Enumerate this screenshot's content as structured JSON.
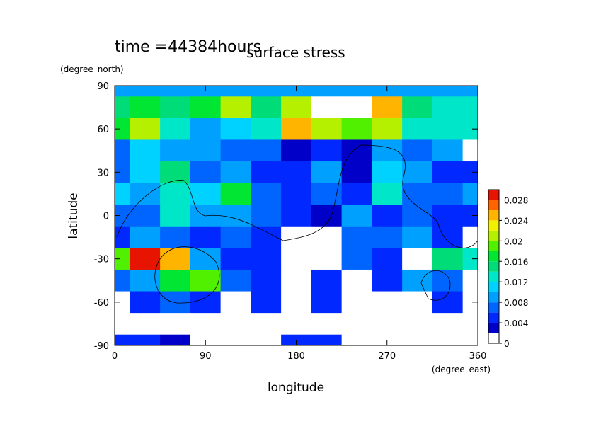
{
  "chart_data": {
    "type": "contour",
    "title": "surface stress",
    "subtitle": "time =44384hours",
    "x_label": "longitude",
    "x_units": "(degree_east)",
    "y_label": "latitude",
    "y_units": "(degree_north)",
    "x": [
      0,
      30,
      60,
      90,
      120,
      150,
      180,
      210,
      240,
      270,
      300,
      330,
      360
    ],
    "y": [
      90,
      75,
      60,
      45,
      30,
      15,
      0,
      -15,
      -30,
      -45,
      -60,
      -75,
      -90
    ],
    "z": [
      [
        0.008,
        0.008,
        0.008,
        0.008,
        0.008,
        0.008,
        0.008,
        0.008,
        0.008,
        0.008,
        0.008,
        0.008,
        0.008
      ],
      [
        0.014,
        0.016,
        0.014,
        0.016,
        0.02,
        0.014,
        0.02,
        0,
        0,
        0.024,
        0.014,
        0.012,
        0.012
      ],
      [
        0.016,
        0.02,
        0.012,
        0.008,
        0.01,
        0.012,
        0.024,
        0.02,
        0.018,
        0.02,
        0.012,
        0.012,
        0.012
      ],
      [
        0.006,
        0.01,
        0.008,
        0.008,
        0.006,
        0.006,
        0.002,
        0.004,
        0.002,
        0.008,
        0.006,
        0.008,
        0
      ],
      [
        0.006,
        0.01,
        0.014,
        0.006,
        0.008,
        0.004,
        0.004,
        0.008,
        0.002,
        0.01,
        0.008,
        0.004,
        0.004
      ],
      [
        0.01,
        0.008,
        0.012,
        0.01,
        0.016,
        0.006,
        0.004,
        0.006,
        0.004,
        0.012,
        0.006,
        0.006,
        0.008
      ],
      [
        0.006,
        0.006,
        0.012,
        0.008,
        0.008,
        0.006,
        0.004,
        0.002,
        0.008,
        0.004,
        0.006,
        0.004,
        0.004
      ],
      [
        0.004,
        0.008,
        0.006,
        0.004,
        0.006,
        0.004,
        0,
        0,
        0.006,
        0.006,
        0.008,
        0.004,
        0
      ],
      [
        0.018,
        0.028,
        0.024,
        0.008,
        0.004,
        0.004,
        0,
        0,
        0.006,
        0.004,
        0,
        0.014,
        0.012
      ],
      [
        0.006,
        0.008,
        0.016,
        0.018,
        0.006,
        0.004,
        0,
        0.004,
        0,
        0.004,
        0.008,
        0.006,
        0
      ],
      [
        0,
        0.004,
        0.006,
        0.004,
        0,
        0.004,
        0,
        0.004,
        0,
        0,
        0,
        0.004,
        0
      ],
      [
        0,
        0,
        0,
        0,
        0,
        0,
        0,
        0,
        0,
        0,
        0,
        0,
        0
      ],
      [
        0.004,
        0.004,
        0.002,
        0,
        0,
        0,
        0.004,
        0.004,
        0,
        0,
        0,
        0,
        0
      ]
    ],
    "xlim": [
      0,
      360
    ],
    "xticks": [
      0,
      90,
      180,
      270,
      360
    ],
    "ylim": [
      -90,
      90
    ],
    "yticks": [
      -90,
      -60,
      -30,
      0,
      30,
      60,
      90
    ],
    "levels": [
      0,
      0.002,
      0.004,
      0.006,
      0.008,
      0.01,
      0.012,
      0.014,
      0.016,
      0.018,
      0.02,
      0.022,
      0.024,
      0.026,
      0.028
    ],
    "colors": [
      "#ffffff",
      "#0000c8",
      "#0028ff",
      "#0064ff",
      "#00a0ff",
      "#00d2ff",
      "#00e6c8",
      "#00dc78",
      "#00e632",
      "#50f000",
      "#b4f000",
      "#f0f000",
      "#ffb400",
      "#ff6400",
      "#e61400"
    ],
    "clim": [
      0,
      0.03
    ],
    "cticks": [
      0,
      0.004,
      0.008,
      0.012,
      0.016,
      0.02,
      0.024,
      0.028
    ]
  }
}
